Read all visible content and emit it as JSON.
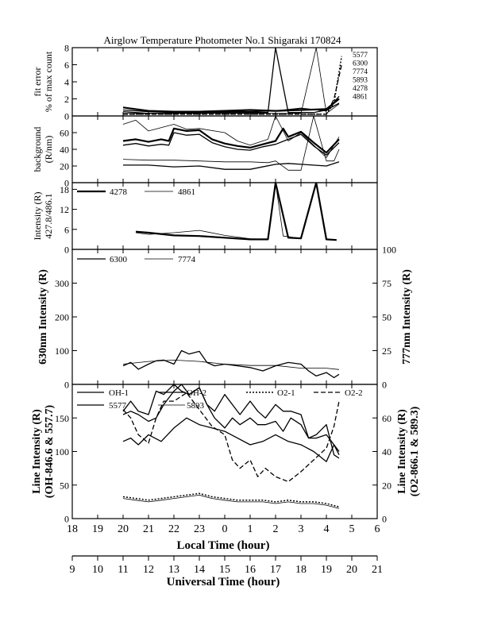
{
  "title": "Airglow Temperature Photometer No.1  Shigaraki  170824",
  "colors": {
    "ink": "#000000",
    "background": "#ffffff"
  },
  "x_axes": {
    "local": {
      "label": "Local Time (hour)",
      "ticks": [
        "18",
        "19",
        "20",
        "21",
        "22",
        "23",
        "0",
        "1",
        "2",
        "3",
        "4",
        "5",
        "6"
      ]
    },
    "universal": {
      "label": "Universal Time (hour)",
      "ticks": [
        "9",
        "10",
        "11",
        "12",
        "13",
        "14",
        "15",
        "16",
        "17",
        "18",
        "19",
        "20",
        "21"
      ]
    }
  },
  "chart_data": [
    {
      "id": "fit-error",
      "type": "line",
      "ylabel": [
        "fit error",
        "% of max count"
      ],
      "ylim": [
        0,
        8
      ],
      "yticks": [
        "0",
        "2",
        "4",
        "6",
        "8"
      ],
      "legend": [
        "5577",
        "6300",
        "7774",
        "5893",
        "4278",
        "4861"
      ],
      "x_unit": "local time (hour)",
      "series": [
        {
          "name": "5577",
          "style": "solid-thick",
          "x": [
            20,
            21,
            22,
            23,
            24,
            25,
            26,
            27,
            28,
            28.5
          ],
          "y": [
            1.0,
            0.6,
            0.5,
            0.5,
            0.6,
            0.7,
            0.6,
            0.7,
            0.8,
            2.0
          ]
        },
        {
          "name": "6300",
          "style": "solid",
          "x": [
            20,
            21,
            22,
            23,
            24,
            25,
            25.7,
            26,
            26.5,
            27,
            27.5,
            28,
            28.5
          ],
          "y": [
            0.5,
            0.3,
            0.3,
            0.4,
            0.4,
            0.4,
            0.4,
            8.0,
            0.4,
            0.4,
            0.4,
            0.7,
            1.5
          ]
        },
        {
          "name": "7774",
          "style": "solid-thin",
          "x": [
            20,
            21,
            22,
            23,
            24,
            25,
            26,
            26.3,
            27,
            27.6,
            28,
            28.5
          ],
          "y": [
            0.3,
            0.3,
            0.3,
            0.3,
            0.3,
            0.3,
            0.3,
            0.3,
            0.3,
            8.0,
            0.3,
            1.4
          ]
        },
        {
          "name": "5893",
          "style": "solid",
          "x": [
            20,
            21,
            22,
            23,
            24,
            25,
            26,
            27,
            28,
            28.5
          ],
          "y": [
            0.7,
            0.5,
            0.4,
            0.5,
            0.5,
            0.5,
            0.6,
            0.9,
            0.6,
            2.3
          ]
        },
        {
          "name": "4278",
          "style": "dotted",
          "x": [
            20,
            22,
            24,
            26,
            28,
            28.3,
            28.6
          ],
          "y": [
            0.2,
            0.2,
            0.2,
            0.2,
            0.2,
            1.5,
            7.0
          ]
        },
        {
          "name": "4861",
          "style": "dashed",
          "x": [
            20,
            22,
            24,
            26,
            28,
            28.3,
            28.6
          ],
          "y": [
            0.2,
            0.2,
            0.2,
            0.2,
            0.2,
            2.0,
            6.0
          ]
        }
      ]
    },
    {
      "id": "background",
      "type": "line",
      "ylabel": [
        "background",
        "(R/nm)"
      ],
      "ylim": [
        0,
        80
      ],
      "yticks": [
        "0",
        "20",
        "40",
        "60"
      ],
      "x_unit": "local time (hour)",
      "series": [
        {
          "name": "background-1",
          "style": "solid-thick",
          "x": [
            20,
            20.5,
            21,
            21.5,
            21.8,
            22,
            22.5,
            23,
            23.5,
            24,
            24.5,
            25,
            25.5,
            26,
            26.3,
            26.5,
            27,
            27.5,
            28,
            28.5
          ],
          "y": [
            50,
            52,
            49,
            52,
            50,
            65,
            62,
            63,
            52,
            47,
            44,
            42,
            46,
            50,
            65,
            55,
            61,
            48,
            36,
            52
          ]
        },
        {
          "name": "background-2",
          "style": "solid",
          "x": [
            20,
            20.5,
            21,
            21.5,
            21.8,
            22,
            22.5,
            23,
            23.5,
            24,
            24.5,
            25,
            25.5,
            26,
            26.5,
            27,
            27.5,
            28,
            28.5
          ],
          "y": [
            45,
            47,
            44,
            46,
            45,
            60,
            57,
            58,
            48,
            43,
            40,
            39,
            43,
            46,
            52,
            58,
            44,
            33,
            48
          ]
        },
        {
          "name": "background-3",
          "style": "solid-thin",
          "x": [
            20,
            20.5,
            21,
            22,
            22.5,
            23,
            24,
            24.5,
            25,
            25.7,
            26,
            26.5,
            27,
            28,
            28.5
          ],
          "y": [
            70,
            75,
            62,
            70,
            64,
            65,
            60,
            50,
            45,
            52,
            80,
            50,
            60,
            30,
            55
          ]
        },
        {
          "name": "background-4",
          "style": "solid-thin",
          "x": [
            20,
            21,
            22,
            23,
            24,
            25,
            25.7,
            26,
            26.5,
            27,
            27.5,
            28,
            28.3,
            28.5
          ],
          "y": [
            28,
            27,
            27,
            26,
            25,
            25,
            24,
            26,
            15,
            15,
            80,
            26,
            26,
            40
          ]
        },
        {
          "name": "background-5",
          "style": "solid",
          "x": [
            20,
            21,
            22,
            23,
            24,
            25,
            26,
            26.5,
            27,
            28,
            28.5
          ],
          "y": [
            21,
            21,
            19,
            20,
            16,
            16,
            22,
            23,
            22,
            20,
            25
          ]
        }
      ]
    },
    {
      "id": "intensity-427-486",
      "type": "line",
      "ylabel": [
        "Intensity (R)",
        "427.8/486.1"
      ],
      "ylim": [
        0,
        20
      ],
      "yticks": [
        "0",
        "6",
        "12",
        "18"
      ],
      "legend": [
        "4278",
        "4861"
      ],
      "x_unit": "local time (hour)",
      "series": [
        {
          "name": "4278",
          "style": "solid-thick",
          "x": [
            20.5,
            21,
            22,
            23,
            24,
            25,
            25.7,
            26,
            26.5,
            27,
            27.6,
            28,
            28.4
          ],
          "y": [
            5.3,
            5.0,
            4.2,
            4.0,
            3.5,
            3.0,
            3.0,
            20.0,
            3.5,
            3.3,
            20.0,
            3.0,
            2.8
          ]
        },
        {
          "name": "4861",
          "style": "solid-thin",
          "x": [
            20.5,
            21,
            22,
            23,
            24,
            25,
            25.7,
            26,
            26.3,
            27,
            27.6,
            28,
            28.4
          ],
          "y": [
            5.0,
            4.5,
            5.0,
            5.7,
            4.2,
            3.2,
            3.0,
            20.0,
            4.0,
            3.3,
            20.0,
            3.0,
            2.8
          ]
        }
      ]
    },
    {
      "id": "630-777",
      "type": "line",
      "ylabel": "630nm Intensity (R)",
      "ylabel_right": "777nm Intensity (R)",
      "ylim": [
        0,
        400
      ],
      "yticks": [
        "0",
        "100",
        "200",
        "300"
      ],
      "ylim_right": [
        0,
        100
      ],
      "yticks_right": [
        "0",
        "25",
        "50",
        "75",
        "100"
      ],
      "legend": [
        "6300",
        "7774"
      ],
      "x_unit": "local time (hour)",
      "series": [
        {
          "name": "6300",
          "axis": "left",
          "style": "solid",
          "x": [
            20,
            20.3,
            20.6,
            21,
            21.3,
            21.6,
            22,
            22.3,
            22.6,
            23,
            23.3,
            23.6,
            24,
            24.5,
            25,
            25.5,
            26,
            26.5,
            27,
            27.3,
            27.6,
            28,
            28.3,
            28.5
          ],
          "y": [
            55,
            65,
            45,
            60,
            70,
            72,
            60,
            100,
            90,
            98,
            65,
            55,
            60,
            55,
            50,
            40,
            55,
            65,
            60,
            40,
            25,
            35,
            20,
            30
          ]
        },
        {
          "name": "7774",
          "axis": "right",
          "style": "solid-thin",
          "x": [
            20,
            21,
            22,
            23,
            24,
            25,
            26,
            27,
            28,
            28.5
          ],
          "y": [
            15,
            17,
            18,
            17,
            15,
            14,
            14,
            12,
            12,
            11
          ]
        }
      ]
    },
    {
      "id": "line-intensity",
      "type": "line",
      "ylabel": [
        "Line Intensity (R)",
        "(OH-846.6 & 557.7)"
      ],
      "ylabel_right": [
        "Line Intensity (R)",
        "(O2-866.1 & 589.3)"
      ],
      "ylim": [
        0,
        200
      ],
      "yticks": [
        "0",
        "50",
        "100",
        "150"
      ],
      "ylim_right": [
        0,
        80
      ],
      "yticks_right": [
        "0",
        "20",
        "40",
        "60"
      ],
      "legend": [
        "OH-1",
        "OH-2",
        "O2-1",
        "O2-2",
        "5577",
        "5893"
      ],
      "x_unit": "local time (hour)",
      "series": [
        {
          "name": "OH-1",
          "axis": "left",
          "style": "solid",
          "x": [
            20,
            20.3,
            20.6,
            21,
            21.3,
            21.6,
            22,
            22.3,
            22.6,
            23,
            23.3,
            23.6,
            24,
            24.3,
            24.6,
            25,
            25.3,
            25.6,
            26,
            26.3,
            26.6,
            27,
            27.3,
            27.6,
            28,
            28.3,
            28.5
          ],
          "y": [
            160,
            175,
            160,
            155,
            190,
            185,
            200,
            190,
            185,
            195,
            170,
            160,
            185,
            170,
            155,
            175,
            160,
            150,
            170,
            160,
            160,
            155,
            120,
            125,
            140,
            95,
            90
          ]
        },
        {
          "name": "OH-2",
          "axis": "left",
          "style": "solid",
          "x": [
            20,
            20.3,
            20.6,
            21,
            21.3,
            21.6,
            22,
            22.3,
            22.6,
            23,
            23.3,
            23.6,
            24,
            24.3,
            24.6,
            25,
            25.3,
            25.6,
            26,
            26.3,
            26.6,
            27,
            27.3,
            27.6,
            28,
            28.3,
            28.5
          ],
          "y": [
            155,
            160,
            155,
            145,
            150,
            170,
            190,
            200,
            185,
            195,
            170,
            150,
            135,
            150,
            140,
            150,
            140,
            140,
            145,
            130,
            150,
            140,
            120,
            120,
            125,
            110,
            100
          ]
        },
        {
          "name": "5577",
          "axis": "left",
          "style": "solid",
          "x": [
            20,
            20.3,
            20.6,
            21,
            21.5,
            22,
            22.5,
            23,
            23.5,
            24,
            24.5,
            25,
            25.5,
            26,
            26.5,
            27,
            27.5,
            28,
            28.3,
            28.5
          ],
          "y": [
            115,
            120,
            110,
            125,
            115,
            135,
            150,
            140,
            135,
            130,
            120,
            110,
            115,
            125,
            115,
            110,
            100,
            85,
            110,
            95
          ]
        },
        {
          "name": "O2-1",
          "axis": "right",
          "style": "dotted",
          "x": [
            20,
            20.5,
            21,
            21.5,
            22,
            22.5,
            23,
            23.5,
            24,
            24.5,
            25,
            25.5,
            26,
            26.5,
            27,
            27.5,
            28,
            28.5
          ],
          "y": [
            13,
            12,
            11,
            12,
            13,
            14,
            15,
            13,
            12,
            11,
            11,
            11,
            10,
            11,
            10,
            10,
            9,
            7
          ]
        },
        {
          "name": "5893",
          "axis": "right",
          "style": "solid-thin",
          "x": [
            20,
            20.5,
            21,
            21.5,
            22,
            22.5,
            23,
            23.5,
            24,
            24.5,
            25,
            25.5,
            26,
            26.5,
            27,
            27.5,
            28,
            28.5
          ],
          "y": [
            12,
            11,
            10,
            11,
            12,
            13,
            14,
            12,
            11,
            10,
            10,
            10,
            9,
            10,
            9,
            9,
            8,
            6
          ]
        },
        {
          "name": "O2-2",
          "axis": "right",
          "style": "dashed",
          "x": [
            20,
            20.3,
            20.6,
            21,
            21.3,
            21.6,
            22,
            22.5,
            23,
            23.5,
            24,
            24.3,
            24.6,
            25,
            25.3,
            25.6,
            26,
            26.5,
            27,
            27.5,
            28,
            28.3,
            28.5
          ],
          "y": [
            65,
            60,
            50,
            45,
            60,
            70,
            70,
            75,
            65,
            55,
            50,
            35,
            30,
            35,
            25,
            30,
            25,
            22,
            28,
            35,
            42,
            55,
            70
          ]
        }
      ]
    }
  ]
}
